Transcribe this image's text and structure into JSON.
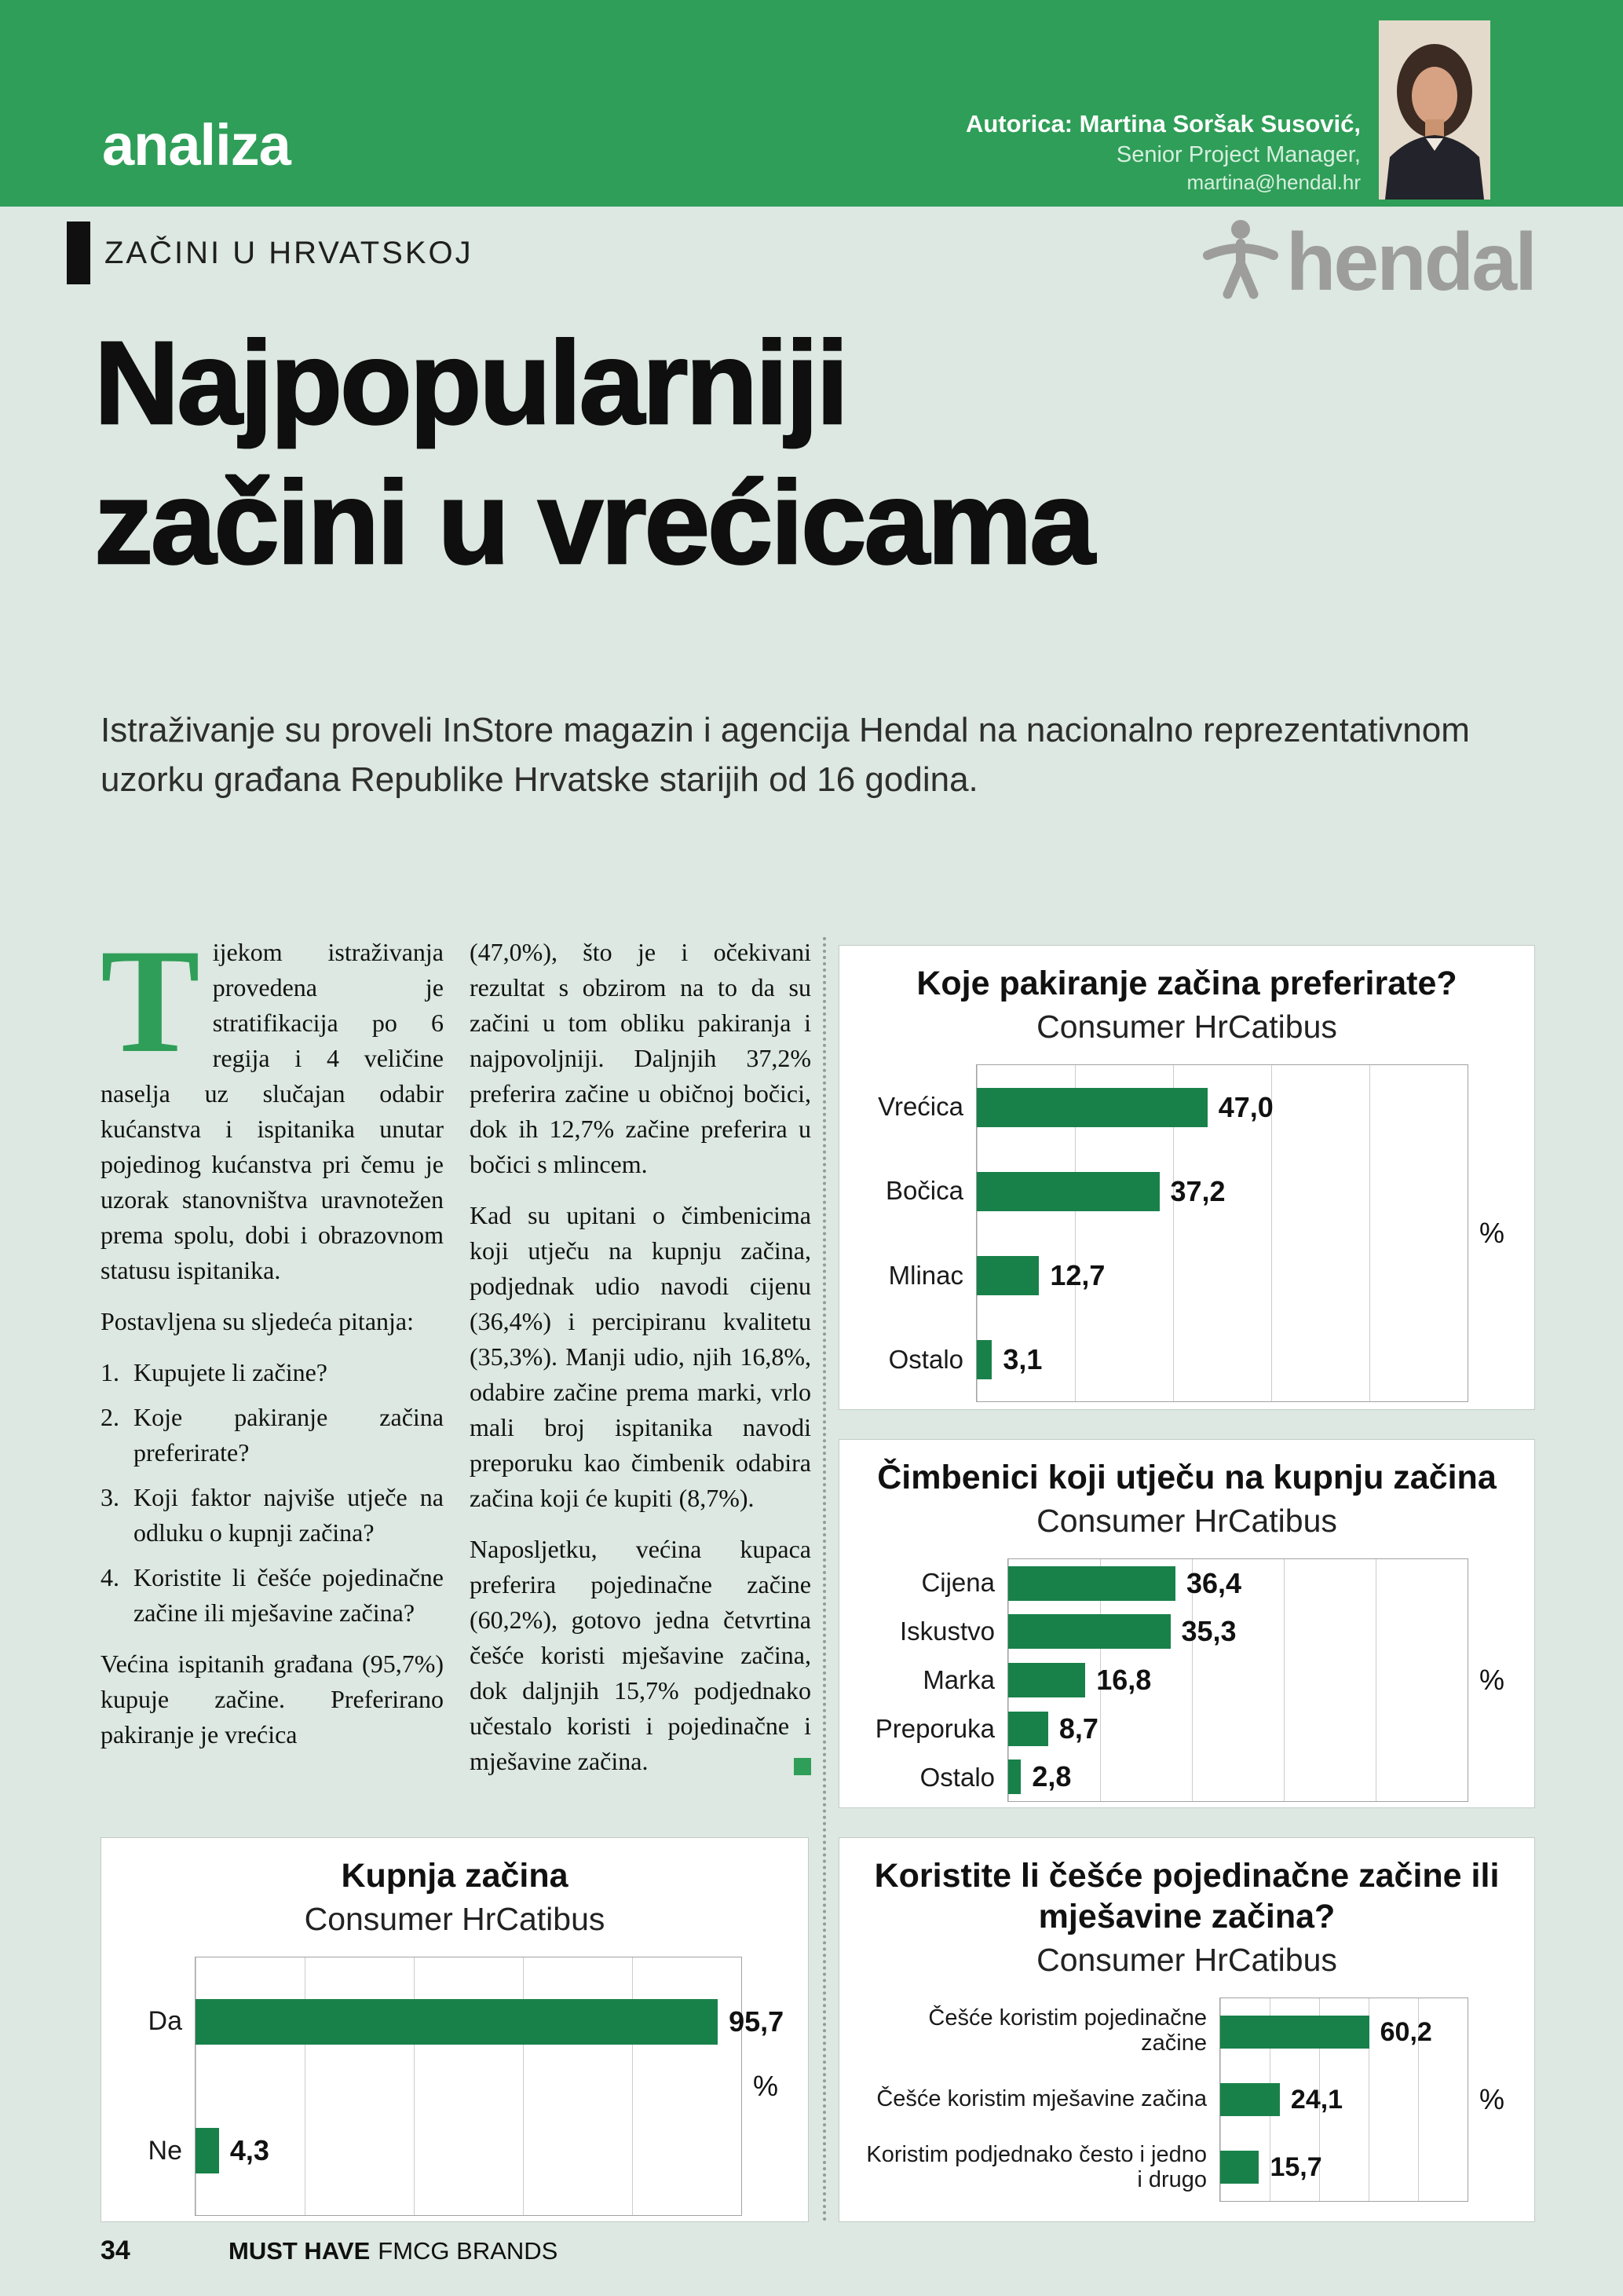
{
  "colors": {
    "header_green": "#2f9e58",
    "page_background": "#dce8e1",
    "bar_green": "#18814a",
    "logo_gray": "#9d9d9c"
  },
  "header": {
    "section_title": "analiza",
    "author_name_line": "Autorica: Martina Soršak Susović,",
    "author_role_line": "Senior Project Manager,",
    "author_email": "martina@hendal.hr"
  },
  "kicker": "ZAČINI U HRVATSKOJ",
  "logo_text": "hendal",
  "title_line1": "Najpopularniji",
  "title_line2": "začini u vrećicama",
  "intro": "Istraživanje su proveli InStore magazin i agencija Hendal na nacionalno reprezentativnom uzorku građana Republike Hrvatske starijih od 16 godina.",
  "article": {
    "dropcap": "T",
    "p1": "ijekom istraživanja provedena je stratifikacija po 6 regija i 4 veličine naselja uz slučajan odabir kućanstva i ispitanika unutar pojedinog kućanstva pri čemu je uzorak stanovništva uravnotežen prema spolu, dobi i obrazovnom statusu ispitanika.",
    "p2": "Postavljena su sljedeća pitanja:",
    "questions": [
      {
        "num": "1.",
        "text": "Kupujete li začine?"
      },
      {
        "num": "2.",
        "text": "Koje pakiranje začina preferirate?"
      },
      {
        "num": "3.",
        "text": "Koji faktor najviše utječe na odluku o kupnji začina?"
      },
      {
        "num": "4.",
        "text": "Koristite li češće pojedinačne začine ili mješavine začina?"
      }
    ],
    "p3": "Većina ispitanih građana (95,7%) kupuje začine. Preferirano pakiranje je vrećica",
    "p4": "(47,0%), što je i očekivani rezultat s obzirom na to da su začini u tom obliku pakiranja i najpovoljniji. Daljnjih 37,2% preferira začine u običnoj bočici, dok ih 12,7% začine preferira u bočici s mlincem.",
    "p5": "Kad su upitani o čimbenicima koji utječu na kupnju začina, podjednak udio navodi cijenu (36,4%) i percipiranu kvalitetu (35,3%). Manji udio, njih 16,8%, odabire začine prema marki, vrlo mali broj ispitanika navodi preporuku kao čimbenik odabira začina koji će kupiti (8,7%).",
    "p6": "Naposljetku, većina kupaca preferira pojedinačne začine (60,2%), gotovo jedna četvrtina češće koristi mješavine začina, dok daljnjih 15,7% podjednako učestalo koristi i pojedinačne i mješavine začina."
  },
  "footer": {
    "page_number": "34",
    "brand_bold": "MUST HAVE",
    "brand_rest": "FMCG BRANDS"
  },
  "chart_data": [
    {
      "type": "bar",
      "orientation": "horizontal",
      "title": "Koje pakiranje začina preferirate?",
      "subtitle": "Consumer HrCatibus",
      "categories": [
        "Vrećica",
        "Bočica",
        "Mlinac",
        "Ostalo"
      ],
      "values": [
        47.0,
        37.2,
        12.7,
        3.1
      ],
      "value_labels": [
        "47,0",
        "37,2",
        "12,7",
        "3,1"
      ],
      "unit": "%",
      "xlim": [
        0,
        100
      ],
      "grid_step": 20,
      "grid": true,
      "legend": false
    },
    {
      "type": "bar",
      "orientation": "horizontal",
      "title": "Čimbenici koji utječu na kupnju začina",
      "subtitle": "Consumer HrCatibus",
      "categories": [
        "Cijena",
        "Iskustvo",
        "Marka",
        "Preporuka",
        "Ostalo"
      ],
      "values": [
        36.4,
        35.3,
        16.8,
        8.7,
        2.8
      ],
      "value_labels": [
        "36,4",
        "35,3",
        "16,8",
        "8,7",
        "2,8"
      ],
      "unit": "%",
      "xlim": [
        0,
        100
      ],
      "grid_step": 20,
      "grid": true,
      "legend": false
    },
    {
      "type": "bar",
      "orientation": "horizontal",
      "title": "Kupnja začina",
      "subtitle": "Consumer HrCatibus",
      "categories": [
        "Da",
        "Ne"
      ],
      "values": [
        95.7,
        4.3
      ],
      "value_labels": [
        "95,7",
        "4,3"
      ],
      "unit": "%",
      "xlim": [
        0,
        100
      ],
      "grid_step": 20,
      "grid": true,
      "legend": false
    },
    {
      "type": "bar",
      "orientation": "horizontal",
      "title": "Koristite li češće pojedinačne začine ili mješavine začina?",
      "subtitle": "Consumer HrCatibus",
      "categories": [
        "Češće koristim pojedinačne začine",
        "Češće koristim mješavine začina",
        "Koristim podjednako često i jedno i drugo"
      ],
      "values": [
        60.2,
        24.1,
        15.7
      ],
      "value_labels": [
        "60,2",
        "24,1",
        "15,7"
      ],
      "unit": "%",
      "xlim": [
        0,
        100
      ],
      "grid_step": 20,
      "grid": true,
      "legend": false
    }
  ]
}
